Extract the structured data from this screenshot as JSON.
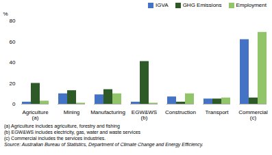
{
  "chart_data": {
    "type": "bar",
    "categories": [
      "Agriculture\n(a)",
      "Mining",
      "Manufacturing",
      "EGW&WS\n(b)",
      "Construction",
      "Transport",
      "Commercial\n(c)"
    ],
    "series": [
      {
        "name": "IGVA",
        "color": "#4472c4",
        "values": [
          2,
          10,
          9,
          2,
          7,
          5,
          62
        ]
      },
      {
        "name": "GHG Emissions",
        "color": "#2d5a27",
        "values": [
          20,
          13,
          14,
          41,
          2,
          5,
          6
        ]
      },
      {
        "name": "Employment",
        "color": "#92c46a",
        "values": [
          3,
          1,
          10,
          1,
          10,
          6,
          69
        ]
      }
    ],
    "ylabel": "%",
    "ylim": [
      0,
      80
    ],
    "yticks": [
      0,
      20,
      40,
      60,
      80
    ],
    "legend": "upper right",
    "grid": false,
    "annotations": [
      "(a) Agriculture includes agriculture, forestry and fishing",
      "(b) EGW&WS includes electricity, gas, water and waste services",
      "(c) Commercial includes the services industries.",
      "Source: Australian Bureau of Statistics, Department of Climate Change and Energy Efficiency."
    ]
  }
}
